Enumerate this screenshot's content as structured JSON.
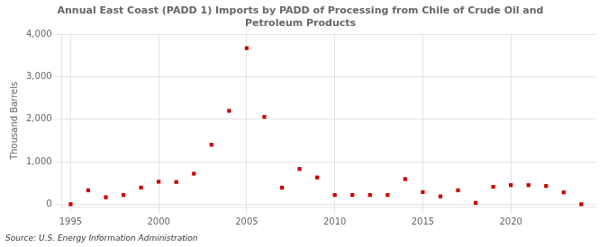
{
  "chart_data": {
    "type": "scatter",
    "title": "Annual East Coast (PADD 1) Imports by PADD of Processing from Chile of Crude Oil and\nPetroleum Products",
    "y_label": "Thousand Barrels",
    "annotation": "Source: U.S. Energy Information Administration",
    "x": [
      1995,
      1996,
      1997,
      1998,
      1999,
      2000,
      2001,
      2002,
      2003,
      2004,
      2005,
      2006,
      2007,
      2008,
      2009,
      2010,
      2011,
      2012,
      2013,
      2014,
      2015,
      2016,
      2017,
      2018,
      2019,
      2020,
      2021,
      2022,
      2023,
      2024
    ],
    "values": [
      0,
      330,
      165,
      215,
      390,
      530,
      525,
      720,
      1400,
      2200,
      3680,
      2060,
      390,
      830,
      630,
      215,
      215,
      215,
      215,
      590,
      285,
      185,
      330,
      30,
      410,
      450,
      450,
      430,
      280,
      0
    ],
    "color": "#cc0000",
    "marker": "square",
    "xlim": [
      1994.5,
      2024.8
    ],
    "ylim": [
      -60,
      4000
    ],
    "xticks": [
      1995,
      2000,
      2005,
      2010,
      2015,
      2020
    ],
    "yticks": [
      0,
      {
        "value": 1000,
        "label": "1,000"
      },
      {
        "value": 2000,
        "label": "2,000"
      },
      {
        "value": 3000,
        "label": "3,000"
      },
      {
        "value": 4000,
        "label": "4,000"
      }
    ],
    "grid": true
  }
}
